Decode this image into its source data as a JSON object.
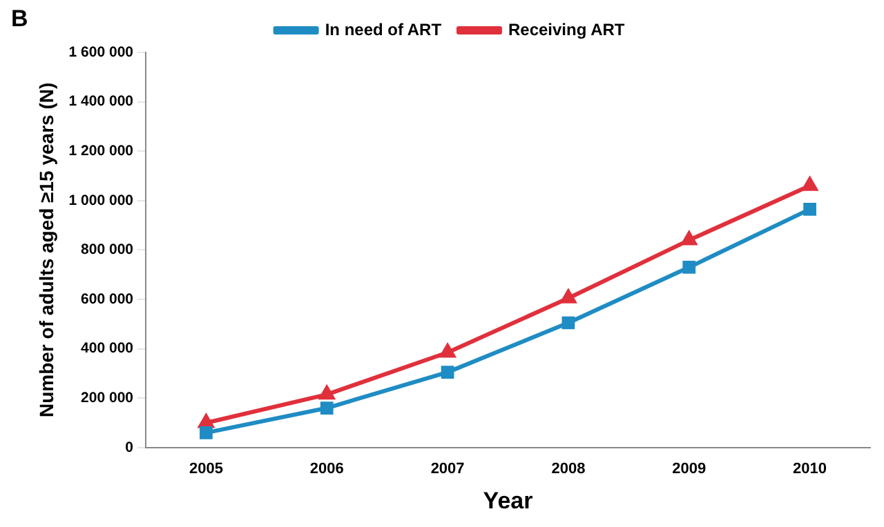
{
  "chart_data": {
    "type": "line",
    "title": "B",
    "xlabel": "Year",
    "ylabel": "Number of adults aged ≥15 years (N)",
    "categories": [
      "2005",
      "2006",
      "2007",
      "2008",
      "2009",
      "2010"
    ],
    "series": [
      {
        "name": "In need of ART",
        "color": "#1f8cc4",
        "marker": "square",
        "values": [
          60000,
          160000,
          305000,
          505000,
          730000,
          965000
        ]
      },
      {
        "name": "Receiving ART",
        "color": "#e0303c",
        "marker": "triangle",
        "values": [
          100000,
          215000,
          385000,
          605000,
          840000,
          1060000
        ]
      }
    ],
    "ylim": [
      0,
      1600000
    ],
    "yticks": [
      {
        "value": 0,
        "label": "0"
      },
      {
        "value": 200000,
        "label": "200 000"
      },
      {
        "value": 400000,
        "label": "400 000"
      },
      {
        "value": 600000,
        "label": "600 000"
      },
      {
        "value": 800000,
        "label": "800 000"
      },
      {
        "value": 1000000,
        "label": "1 000 000"
      },
      {
        "value": 1200000,
        "label": "1 200 000"
      },
      {
        "value": 1400000,
        "label": "1 400 000"
      },
      {
        "value": 1600000,
        "label": "1 600 000"
      }
    ],
    "grid": false,
    "legend": "top",
    "line_style": "solid"
  }
}
